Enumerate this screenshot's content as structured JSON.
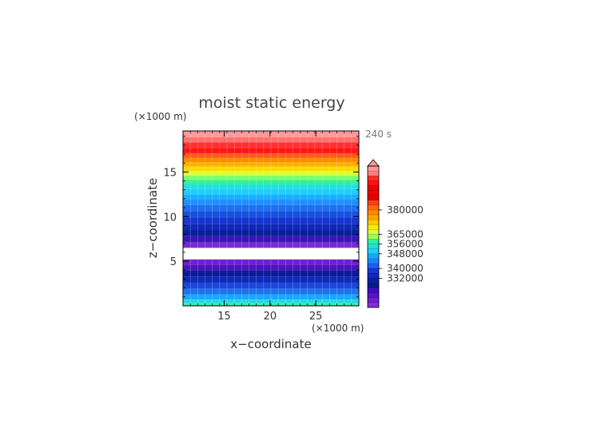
{
  "chart_data": {
    "type": "heatmap",
    "title": "moist static energy",
    "time_label": "240 s",
    "xlabel": "x−coordinate",
    "ylabel": "z−coordinate",
    "x_unit_label": "(×1000 m)",
    "y_unit_label": "(×1000 m)",
    "xlim": [
      10.5,
      29.7
    ],
    "ylim": [
      0,
      19.6
    ],
    "x_ticks": [
      15,
      20,
      25
    ],
    "y_ticks": [
      5,
      10,
      15
    ],
    "gap_z": [
      5.2,
      6.5
    ],
    "colorbar_labels": [
      {
        "label": "380000",
        "level": 9
      },
      {
        "label": "365000",
        "level": 14
      },
      {
        "label": "356000",
        "level": 16
      },
      {
        "label": "348000",
        "level": 18
      },
      {
        "label": "340000",
        "level": 21
      },
      {
        "label": "332000",
        "level": 23
      }
    ],
    "colorbar_extend": "max",
    "colorbar_colors": [
      "#ff9999",
      "#ff7f7f",
      "#ff2a2a",
      "#ff1111",
      "#f00000",
      "#ee0000",
      "#e80000",
      "#ff4020",
      "#ff6a00",
      "#ff8800",
      "#ffa200",
      "#ffc800",
      "#ffeb00",
      "#d8ff3a",
      "#9bff5a",
      "#30f0a0",
      "#20e0d0",
      "#1ecfff",
      "#1aa6ff",
      "#1e82ff",
      "#1a5ef0",
      "#1634d8",
      "#1028c0",
      "#0a20a0",
      "#081890",
      "#400dc0",
      "#5a12c8",
      "#7020d0",
      "#8030d8"
    ],
    "bands_top_to_bottom": [
      {
        "z0": 19.6,
        "z1": 18.9,
        "color": "#ff9999"
      },
      {
        "z0": 18.9,
        "z1": 18.3,
        "color": "#ff7070"
      },
      {
        "z0": 18.3,
        "z1": 17.7,
        "color": "#ff3030"
      },
      {
        "z0": 17.7,
        "z1": 17.1,
        "color": "#ff1515"
      },
      {
        "z0": 17.1,
        "z1": 16.6,
        "color": "#ff5a1f"
      },
      {
        "z0": 16.6,
        "z1": 16.1,
        "color": "#ff8a00"
      },
      {
        "z0": 16.1,
        "z1": 15.6,
        "color": "#ffb000"
      },
      {
        "z0": 15.6,
        "z1": 15.1,
        "color": "#ffd800"
      },
      {
        "z0": 15.1,
        "z1": 14.6,
        "color": "#d8ff3a"
      },
      {
        "z0": 14.6,
        "z1": 14.1,
        "color": "#7dff6a"
      },
      {
        "z0": 14.1,
        "z1": 13.6,
        "color": "#30f0a0"
      },
      {
        "z0": 13.6,
        "z1": 13.1,
        "color": "#22e0d8"
      },
      {
        "z0": 13.1,
        "z1": 12.5,
        "color": "#1ecfff"
      },
      {
        "z0": 12.5,
        "z1": 11.9,
        "color": "#1ab0ff"
      },
      {
        "z0": 11.9,
        "z1": 11.3,
        "color": "#1e90ff"
      },
      {
        "z0": 11.3,
        "z1": 10.6,
        "color": "#1e70f0"
      },
      {
        "z0": 10.6,
        "z1": 9.9,
        "color": "#1a50e0"
      },
      {
        "z0": 9.9,
        "z1": 9.2,
        "color": "#1634d0"
      },
      {
        "z0": 9.2,
        "z1": 8.5,
        "color": "#1028b8"
      },
      {
        "z0": 8.5,
        "z1": 7.8,
        "color": "#0a1e98"
      },
      {
        "z0": 7.8,
        "z1": 7.1,
        "color": "#3a14b8"
      },
      {
        "z0": 7.1,
        "z1": 6.5,
        "color": "#7a2ad0"
      },
      {
        "z0": 5.2,
        "z1": 4.6,
        "color": "#7020d0"
      },
      {
        "z0": 4.6,
        "z1": 4.0,
        "color": "#4a14c0"
      },
      {
        "z0": 4.0,
        "z1": 3.3,
        "color": "#0c1a98"
      },
      {
        "z0": 3.3,
        "z1": 2.6,
        "color": "#1028b8"
      },
      {
        "z0": 2.6,
        "z1": 1.9,
        "color": "#1a48d8"
      },
      {
        "z0": 1.9,
        "z1": 1.3,
        "color": "#1e72f0"
      },
      {
        "z0": 1.3,
        "z1": 0.7,
        "color": "#1aa8ff"
      },
      {
        "z0": 0.7,
        "z1": 0.3,
        "color": "#20d8e0"
      },
      {
        "z0": 0.3,
        "z1": 0.0,
        "color": "#30f0b0"
      }
    ]
  }
}
